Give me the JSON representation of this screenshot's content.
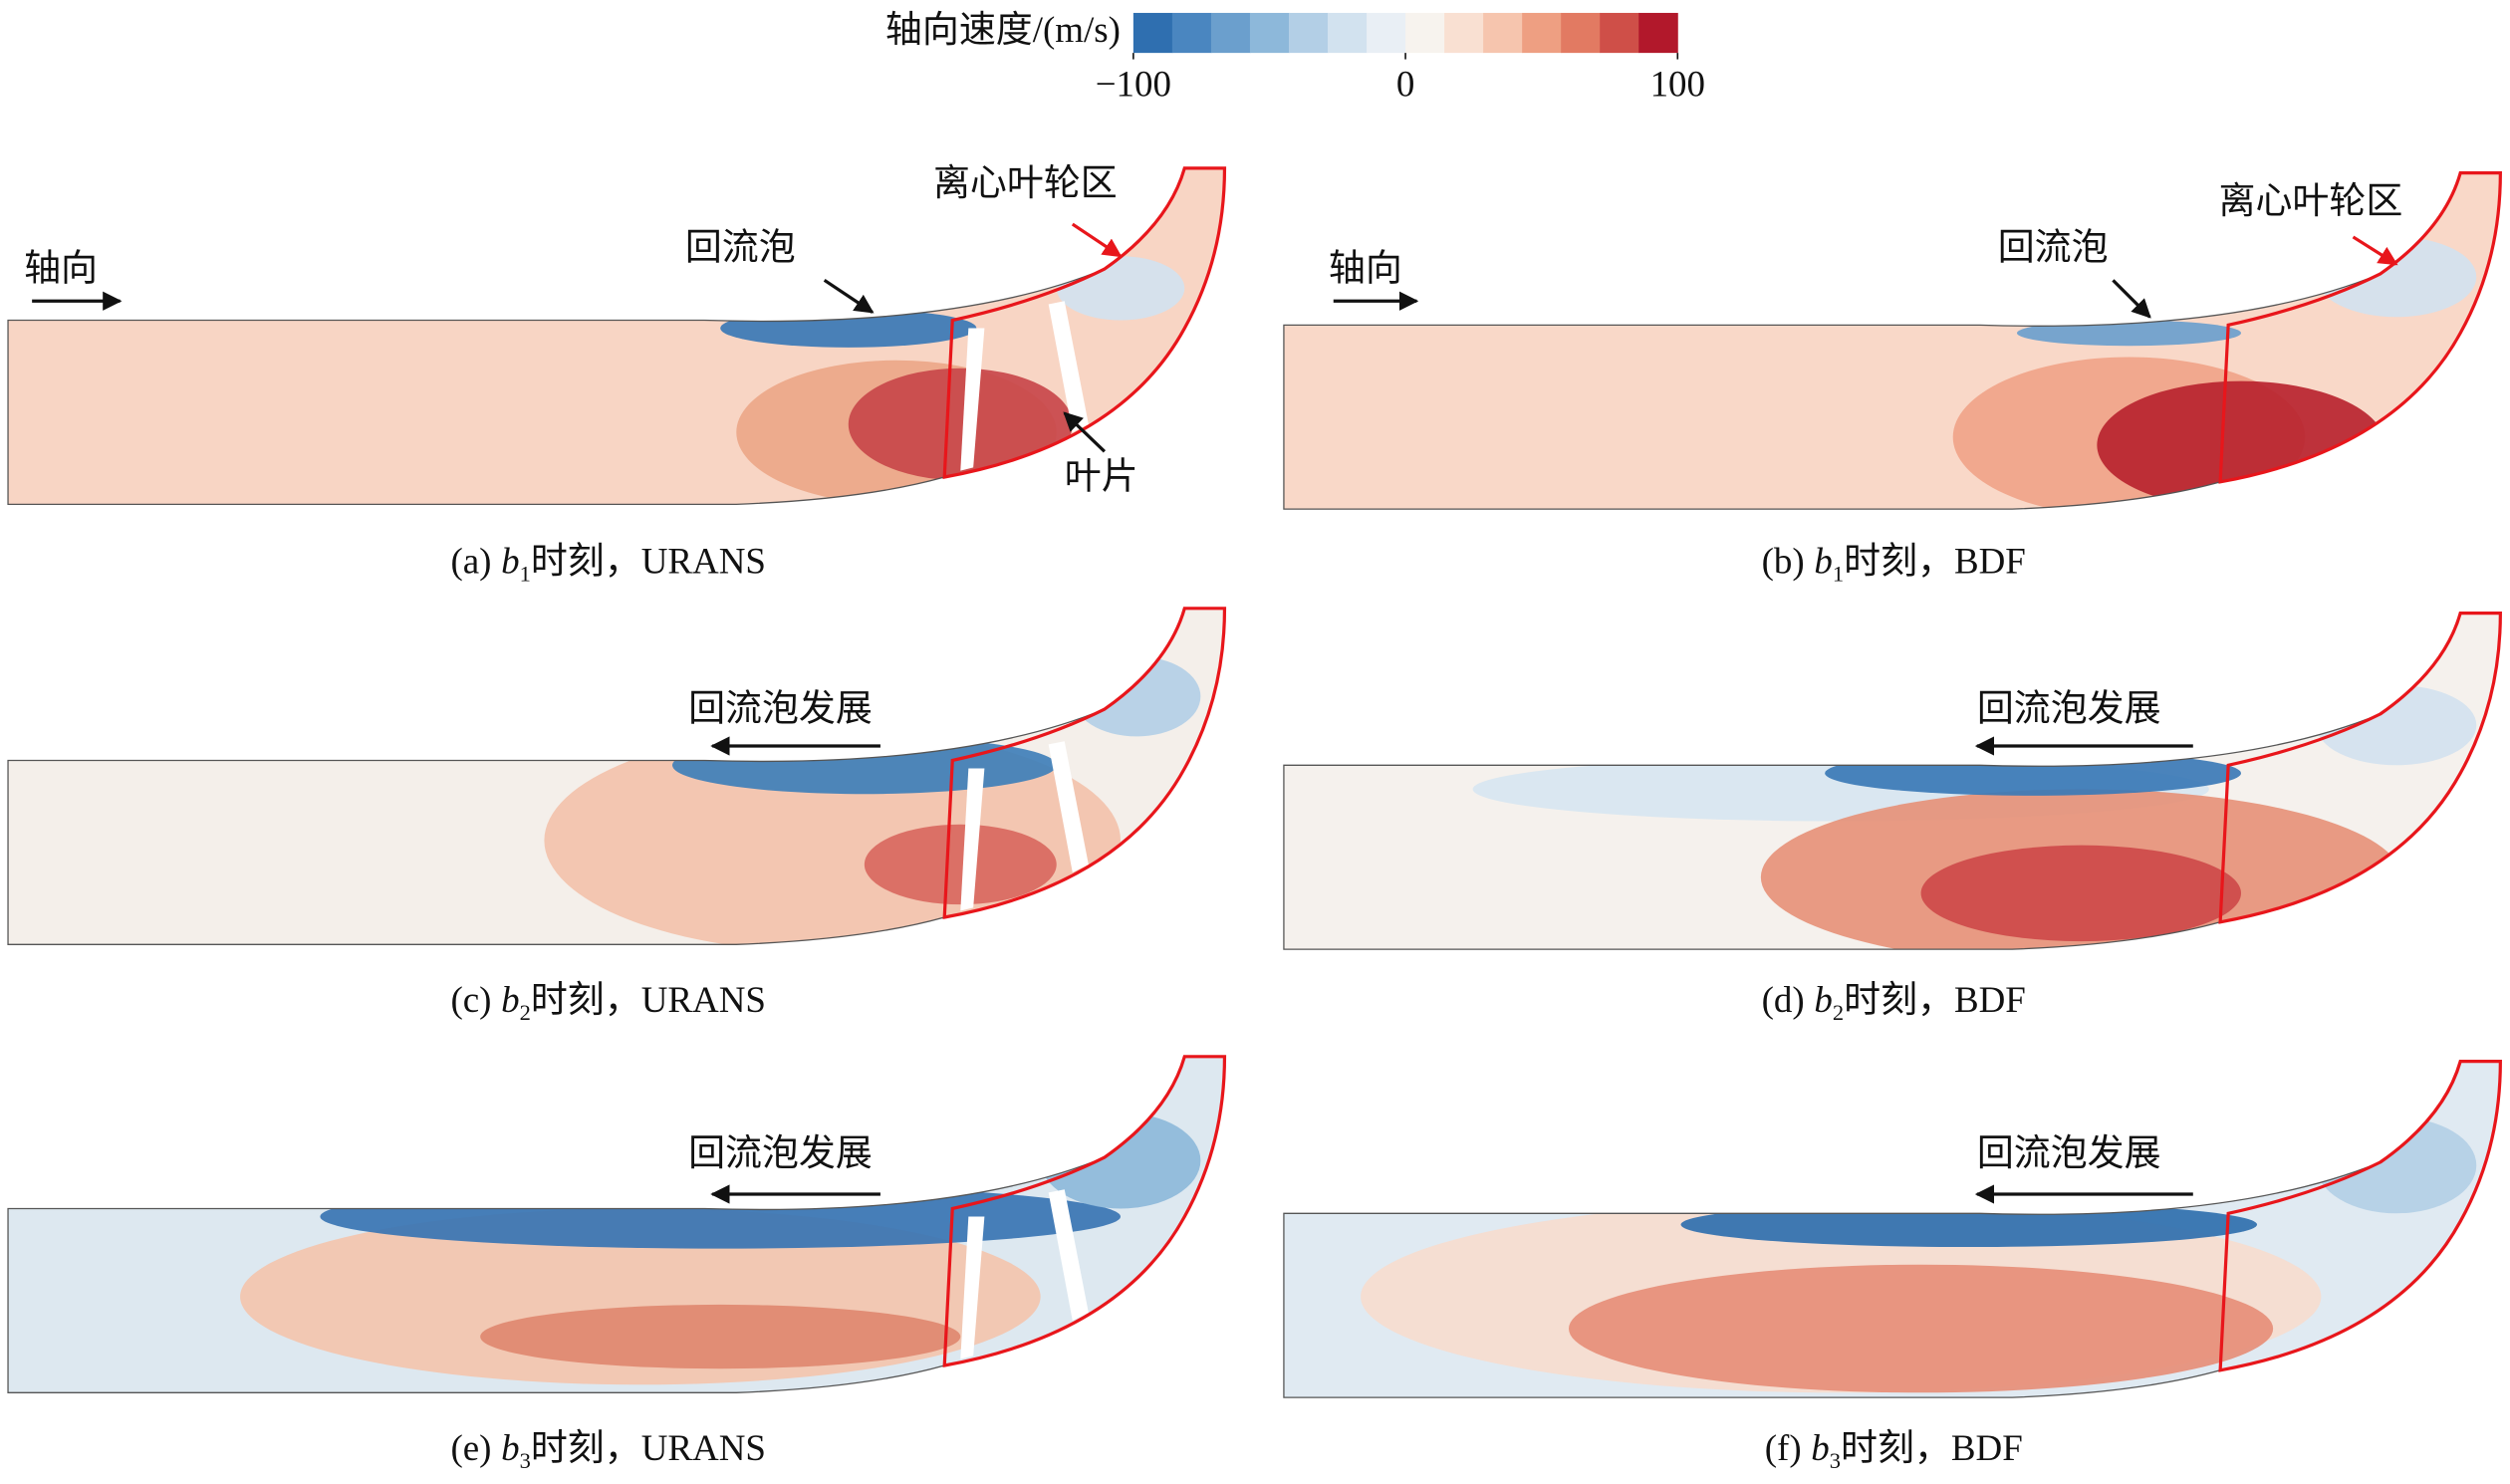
{
  "colorbar": {
    "title": "轴向速度/(m/s)",
    "lim": [
      -100,
      100
    ],
    "ticks": [
      {
        "value": -100,
        "label": "−100"
      },
      0,
      100
    ],
    "colors": [
      "#2f6fb0",
      "#4a86c0",
      "#6b9fcd",
      "#8db8da",
      "#b3cfe6",
      "#d2e2ef",
      "#e9eff5",
      "#f7f3ee",
      "#f9e0d2",
      "#f6c5ae",
      "#ee9f82",
      "#e27a62",
      "#cf4f48",
      "#b2182b"
    ]
  },
  "panels": [
    {
      "caption": {
        "label": "(a)",
        "var": "b",
        "sub": "1",
        "rest": "时刻，URANS"
      },
      "annotations": [
        "轴向",
        "回流泡",
        "离心叶轮区",
        "叶片"
      ]
    },
    {
      "caption": {
        "label": "(b)",
        "var": "b",
        "sub": "1",
        "rest": "时刻，BDF"
      },
      "annotations": [
        "轴向",
        "回流泡",
        "离心叶轮区"
      ]
    },
    {
      "caption": {
        "label": "(c)",
        "var": "b",
        "sub": "2",
        "rest": "时刻，URANS"
      },
      "annotations": [
        "回流泡发展"
      ]
    },
    {
      "caption": {
        "label": "(d)",
        "var": "b",
        "sub": "2",
        "rest": "时刻，BDF"
      },
      "annotations": [
        "回流泡发展"
      ]
    },
    {
      "caption": {
        "label": "(e)",
        "var": "b",
        "sub": "3",
        "rest": "时刻，URANS"
      },
      "annotations": [
        "回流泡发展"
      ]
    },
    {
      "caption": {
        "label": "(f)",
        "var": "b",
        "sub": "3",
        "rest": "时刻，BDF"
      },
      "annotations": [
        "回流泡发展"
      ]
    }
  ]
}
